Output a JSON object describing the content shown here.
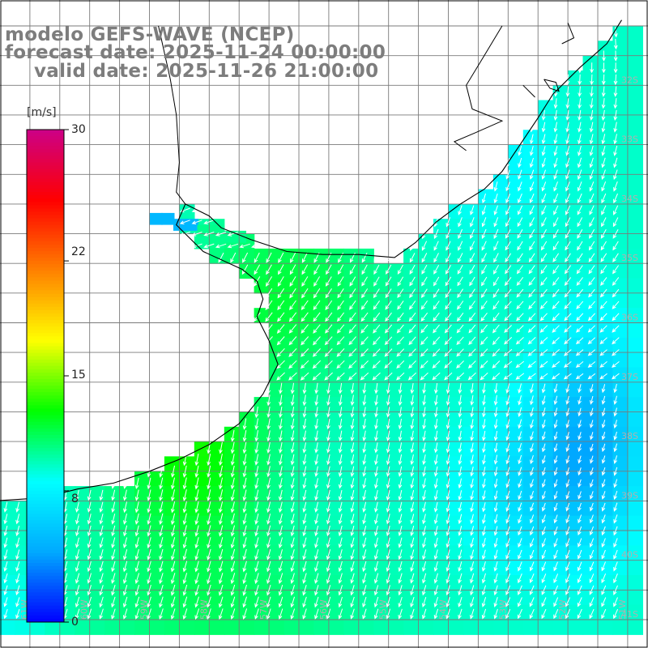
{
  "titles": {
    "line1": "modelo GEFS-WAVE (NCEP)",
    "line2": "forecast date: 2025-11-24 00:00:00",
    "line3": "valid date: 2025-11-26 21:00:00"
  },
  "colorbar": {
    "unit": "[m/s]",
    "ticks": [
      "30",
      "22",
      "15",
      "8",
      "0"
    ],
    "tick_values": [
      30,
      22,
      15,
      8,
      0
    ],
    "min": 0,
    "max": 30,
    "colors": [
      "#0000ff",
      "#00aaff",
      "#00ffff",
      "#00ff00",
      "#ffff00",
      "#ff8000",
      "#ff0000",
      "#cc0088"
    ]
  },
  "map": {
    "variable": "wind speed",
    "lat_labels": [
      "31S",
      "32S",
      "33S",
      "34S",
      "35S",
      "36S",
      "37S",
      "38S",
      "39S",
      "40S",
      "41S"
    ],
    "lon_labels": [
      "61W",
      "60W",
      "59W",
      "58W",
      "57W",
      "56W",
      "55W",
      "54W",
      "53W",
      "52W",
      "51W"
    ],
    "lat_range": [
      -41,
      -31
    ],
    "lon_range": [
      -61.5,
      -51
    ]
  },
  "colors": {
    "land": "#ffffff",
    "grid": "#7a7a7a",
    "coast": "#000000",
    "vector": "#ffffff",
    "title": "#7d7d7d"
  }
}
